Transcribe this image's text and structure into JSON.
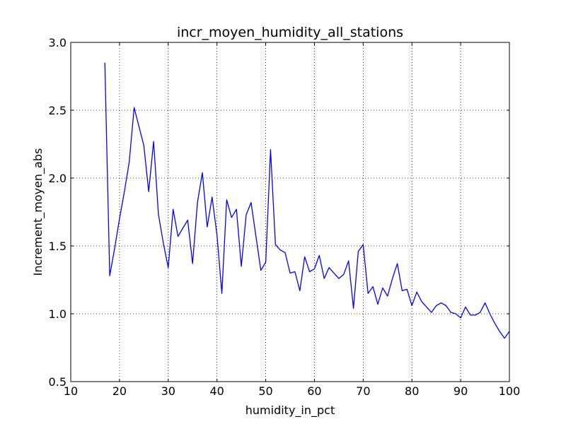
{
  "chart_data": {
    "type": "line",
    "title": "incr_moyen_humidity_all_stations",
    "xlabel": "humidity_in_pct",
    "ylabel": "Increment_moyen_abs",
    "xlim": [
      10,
      100
    ],
    "ylim": [
      0.5,
      3.0
    ],
    "xticks": [
      10,
      20,
      30,
      40,
      50,
      60,
      70,
      80,
      90,
      100
    ],
    "xtick_labels": [
      "10",
      "20",
      "30",
      "40",
      "50",
      "60",
      "70",
      "80",
      "90",
      "100"
    ],
    "yticks": [
      0.5,
      1.0,
      1.5,
      2.0,
      2.5,
      3.0
    ],
    "ytick_labels": [
      "0.5",
      "1.0",
      "1.5",
      "2.0",
      "2.5",
      "3.0"
    ],
    "grid": true,
    "line_color": "#0000ff",
    "series": [
      {
        "x": [
          17,
          18,
          19,
          20,
          21,
          22,
          23,
          24,
          25,
          26,
          27,
          28,
          29,
          30,
          31,
          32,
          33,
          34,
          35,
          36,
          37,
          38,
          39,
          40,
          41,
          42,
          43,
          44,
          45,
          46,
          47,
          48,
          49,
          50,
          51,
          52,
          53,
          54,
          55,
          56,
          57,
          58,
          59,
          60,
          61,
          62,
          63,
          64,
          65,
          66,
          67,
          68,
          69,
          70,
          71,
          72,
          73,
          74,
          75,
          76,
          77,
          78,
          79,
          80,
          81,
          82,
          83,
          84,
          85,
          86,
          87,
          88,
          89,
          90,
          91,
          92,
          93,
          94,
          95,
          96,
          97,
          98,
          99,
          100
        ],
        "values": [
          2.85,
          1.28,
          1.48,
          1.7,
          1.9,
          2.12,
          2.52,
          2.38,
          2.24,
          1.9,
          2.27,
          1.73,
          1.52,
          1.34,
          1.77,
          1.57,
          1.63,
          1.69,
          1.37,
          1.82,
          2.04,
          1.64,
          1.86,
          1.58,
          1.15,
          1.84,
          1.71,
          1.77,
          1.35,
          1.73,
          1.82,
          1.57,
          1.32,
          1.38,
          2.21,
          1.51,
          1.47,
          1.45,
          1.3,
          1.31,
          1.17,
          1.42,
          1.31,
          1.33,
          1.43,
          1.26,
          1.34,
          1.3,
          1.26,
          1.29,
          1.39,
          1.04,
          1.46,
          1.51,
          1.15,
          1.2,
          1.07,
          1.19,
          1.13,
          1.26,
          1.37,
          1.17,
          1.18,
          1.06,
          1.16,
          1.09,
          1.05,
          1.01,
          1.06,
          1.08,
          1.06,
          1.01,
          1.0,
          0.97,
          1.05,
          0.99,
          0.99,
          1.01,
          1.08,
          1.0,
          0.93,
          0.87,
          0.82,
          0.87
        ]
      }
    ]
  }
}
